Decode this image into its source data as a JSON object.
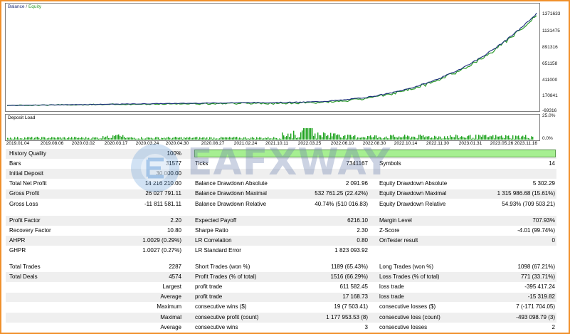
{
  "legend": {
    "balance": "Balance",
    "separator": "/",
    "equity": "Equity"
  },
  "y_ticks": [
    "1371633",
    "1131475",
    "891316",
    "651158",
    "411000",
    "170841",
    "-69316"
  ],
  "load": {
    "title": "Deposit Load",
    "top_label": "25.0%",
    "bottom_label": "0.0%"
  },
  "x_ticks": [
    "2019.01.04",
    "2019.08.06",
    "2020.03.02",
    "2020.03.17",
    "2020.03.24",
    "2020.04.30",
    "2020.08.27",
    "2021.02.24",
    "2021.10.11",
    "2022.03.25",
    "2022.06.10",
    "2022.08.30",
    "2022.10.14",
    "2022.11.30",
    "2023.01.31",
    "2023.05.26",
    "2023.11.16"
  ],
  "watermark": "EAFXWAY",
  "colors": {
    "balance": "#1c2e7c",
    "equity": "#2a9a2a",
    "load": "#1fa31f",
    "frame": "#f0902a",
    "quality": "#a6ef91"
  },
  "stats": {
    "history_quality": {
      "label": "History Quality",
      "value": "100%"
    },
    "rows_top": [
      {
        "l1": "Bars",
        "v1": "31577",
        "l2": "Ticks",
        "v2": "7341167",
        "l3": "Symbols",
        "v3": "14"
      },
      {
        "l1": "Initial Deposit",
        "v1": "30 000.00",
        "l2": "",
        "v2": "",
        "l3": "",
        "v3": ""
      },
      {
        "l1": "Total Net Profit",
        "v1": "14 216 210.00",
        "l2": "Balance Drawdown Absolute",
        "v2": "2 091.96",
        "l3": "Equity Drawdown Absolute",
        "v3": "5 302.29"
      },
      {
        "l1": "Gross Profit",
        "v1": "26 027 791.11",
        "l2": "Balance Drawdown Maximal",
        "v2": "532 761.25 (22.42%)",
        "l3": "Equity Drawdown Maximal",
        "v3": "1 315 986.68 (15.61%)"
      },
      {
        "l1": "Gross Loss",
        "v1": "-11 811 581.11",
        "l2": "Balance Drawdown Relative",
        "v2": "40.74% (510 016.83)",
        "l3": "Equity Drawdown Relative",
        "v3": "54.93% (709 503.21)"
      }
    ],
    "rows_mid": [
      {
        "l1": "Profit Factor",
        "v1": "2.20",
        "l2": "Expected Payoff",
        "v2": "6216.10",
        "l3": "Margin Level",
        "v3": "707.93%"
      },
      {
        "l1": "Recovery Factor",
        "v1": "10.80",
        "l2": "Sharpe Ratio",
        "v2": "2.30",
        "l3": "Z-Score",
        "v3": "-4.01 (99.74%)"
      },
      {
        "l1": "AHPR",
        "v1": "1.0029 (0.29%)",
        "l2": "LR Correlation",
        "v2": "0.80",
        "l3": "OnTester result",
        "v3": "0"
      },
      {
        "l1": "GHPR",
        "v1": "1.0027 (0.27%)",
        "l2": "LR Standard Error",
        "v2": "1 823 093.92",
        "l3": "",
        "v3": ""
      }
    ],
    "rows_trades": [
      {
        "l1": "Total Trades",
        "v1": "2287",
        "l2": "Short Trades (won %)",
        "v2": "1189 (65.43%)",
        "l3": "Long Trades (won %)",
        "v3": "1098 (67.21%)"
      },
      {
        "l1": "Total Deals",
        "v1": "4574",
        "l2": "Profit Trades (% of total)",
        "v2": "1516 (66.29%)",
        "l3": "Loss Trades (% of total)",
        "v3": "771 (33.71%)"
      },
      {
        "r1": "Largest",
        "l2": "profit trade",
        "v2": "611 582.45",
        "l3": "loss trade",
        "v3": "-395 417.24"
      },
      {
        "r1": "Average",
        "l2": "profit trade",
        "v2": "17 168.73",
        "l3": "loss trade",
        "v3": "-15 319.82"
      },
      {
        "r1": "Maximum",
        "l2": "consecutive wins ($)",
        "v2": "19 (7 503.41)",
        "l3": "consecutive losses ($)",
        "v3": "7 (-171 704.05)"
      },
      {
        "r1": "Maximal",
        "l2": "consecutive profit (count)",
        "v2": "1 177 953.53 (8)",
        "l3": "consecutive loss (count)",
        "v3": "-493 098.79 (3)"
      },
      {
        "r1": "Average",
        "l2": "consecutive wins",
        "v2": "3",
        "l3": "consecutive losses",
        "v3": "2"
      }
    ]
  }
}
